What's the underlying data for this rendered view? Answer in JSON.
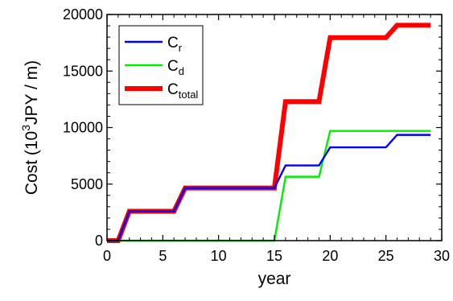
{
  "chart_data": {
    "type": "line",
    "xlabel": "year",
    "ylabel_main": "Cost (10",
    "ylabel_sup": "3",
    "ylabel_rest": "JPY / m)",
    "xlim": [
      0,
      30
    ],
    "ylim": [
      0,
      20000
    ],
    "xticks": [
      0,
      5,
      10,
      15,
      20,
      25,
      30
    ],
    "yticks": [
      0,
      5000,
      10000,
      15000,
      20000
    ],
    "grid": false,
    "legend_position": "top-left",
    "series": [
      {
        "name_main": "C",
        "name_sub": "r",
        "color": "#0000ff",
        "width": "normal",
        "x": [
          0,
          1,
          2,
          6,
          7,
          15,
          16,
          19,
          20,
          25,
          26,
          29
        ],
        "y": [
          0,
          0,
          2600,
          2600,
          4650,
          4650,
          6650,
          6650,
          8250,
          8250,
          9350,
          9350
        ]
      },
      {
        "name_main": "C",
        "name_sub": "d",
        "color": "#00ee00",
        "width": "normal",
        "x": [
          0,
          15,
          16,
          19,
          20,
          29
        ],
        "y": [
          0,
          0,
          5650,
          5650,
          9700,
          9700
        ]
      },
      {
        "name_main": "C",
        "name_sub": "total",
        "color": "#ff0000",
        "width": "thick",
        "x": [
          0,
          1,
          2,
          6,
          7,
          15,
          16,
          19,
          20,
          25,
          26,
          29
        ],
        "y": [
          0,
          0,
          2600,
          2600,
          4650,
          4650,
          12300,
          12300,
          17950,
          17950,
          19050,
          19050
        ]
      }
    ]
  }
}
